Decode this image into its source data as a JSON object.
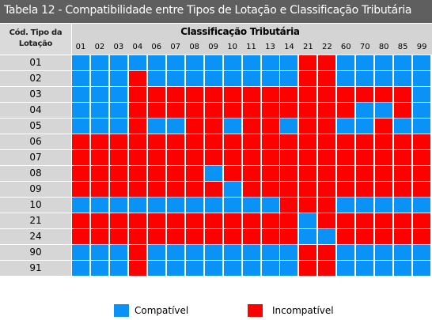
{
  "title": "Tabela 12 - Compatibilidade entre Tipos de Lotação e Classificação Tributária",
  "header": {
    "row_header_line1": "Cód. Tipo da",
    "row_header_line2": "Lotação",
    "column_group": "Classificação Tributária"
  },
  "columns": [
    "01",
    "02",
    "03",
    "04",
    "06",
    "07",
    "08",
    "09",
    "10",
    "11",
    "13",
    "14",
    "21",
    "22",
    "60",
    "70",
    "80",
    "85",
    "99"
  ],
  "rows": [
    {
      "code": "01",
      "cells": "CCCCCCCCCCCCIICCCCC"
    },
    {
      "code": "02",
      "cells": "CCCICCCCCCCCIICCCCC"
    },
    {
      "code": "03",
      "cells": "CCCIIIIIIIIIIIIIIIC"
    },
    {
      "code": "04",
      "cells": "CCCIIIIIIIIIIIICCIC"
    },
    {
      "code": "05",
      "cells": "CCCICCIICIICIICCICC"
    },
    {
      "code": "06",
      "cells": "IIIIIIIIIIIIIIIIIII"
    },
    {
      "code": "07",
      "cells": "IIIIIIIIIIIIIIIIIII"
    },
    {
      "code": "08",
      "cells": "IIIIIIICIIIIIIIIIII"
    },
    {
      "code": "09",
      "cells": "IIIIIIIICIIIIIIIIII"
    },
    {
      "code": "10",
      "cells": "CCCCCCCCCCCIIICCCCC"
    },
    {
      "code": "21",
      "cells": "IIIIIIIIIIIICIIIIII"
    },
    {
      "code": "24",
      "cells": "IIIIIIIIIIIICCIIIII"
    },
    {
      "code": "90",
      "cells": "CCCICCCCCCCCIICCCCC"
    },
    {
      "code": "91",
      "cells": "CCCICCCCCCCCIICCCCC"
    }
  ],
  "legend": {
    "compatible": {
      "label": "Compatível",
      "code": "C",
      "color": "#0b92f6"
    },
    "incompatible": {
      "label": "Incompatível",
      "code": "I",
      "color": "#fb0200"
    }
  },
  "colors": {
    "title_bar": "#5f5f5f",
    "header_bg": "#d4d4d4",
    "row_label_bg": "#d6d6d6"
  }
}
